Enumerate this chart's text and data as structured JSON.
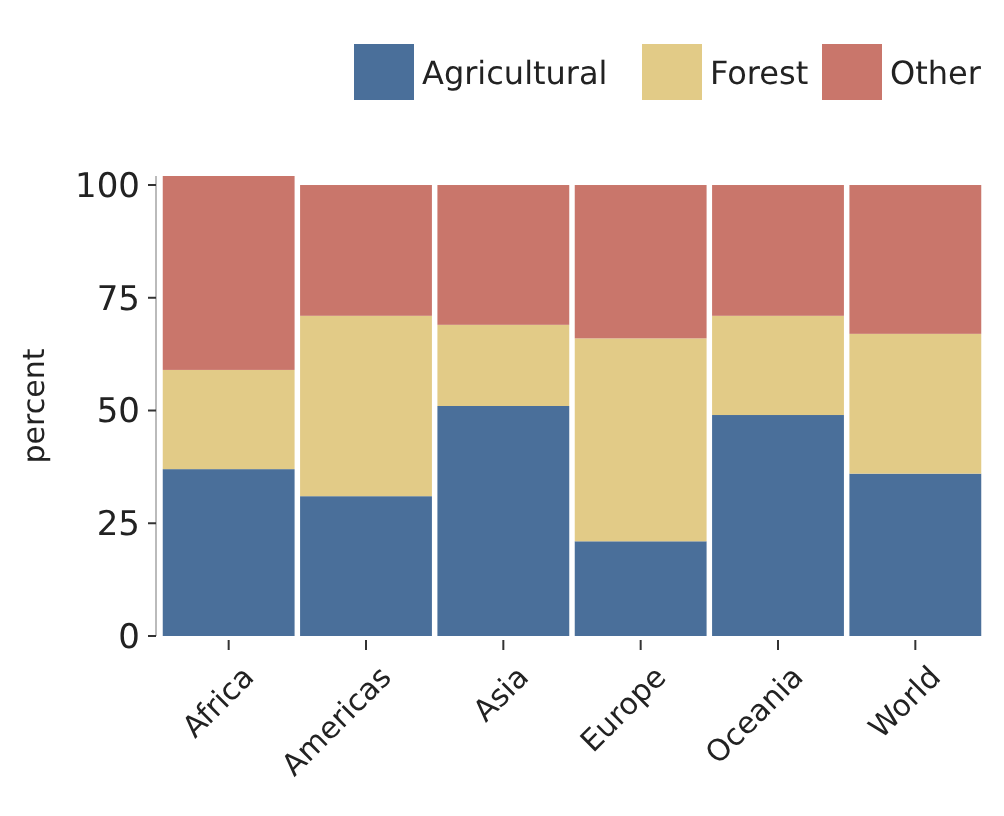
{
  "chart_data": {
    "type": "bar",
    "stacked": true,
    "ylabel": "percent",
    "categories": [
      "Africa",
      "Americas",
      "Asia",
      "Europe",
      "Oceania",
      "World"
    ],
    "series": [
      {
        "name": "Agricultural",
        "color": "#4a6f9a",
        "values": [
          37,
          31,
          51,
          21,
          49,
          36
        ]
      },
      {
        "name": "Forest",
        "color": "#e2cb87",
        "values": [
          22,
          40,
          18,
          45,
          22,
          31
        ]
      },
      {
        "name": "Other",
        "color": "#c9766b",
        "values": [
          43,
          29,
          31,
          34,
          29,
          33
        ]
      }
    ],
    "ylim": [
      0,
      102
    ],
    "yticks": [
      0,
      25,
      50,
      75,
      100
    ],
    "legend": "top",
    "grid": false
  }
}
